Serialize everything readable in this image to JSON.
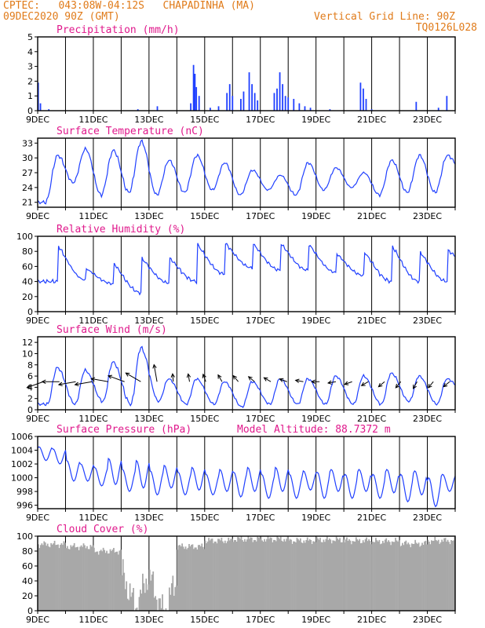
{
  "header": {
    "line1": "CPTEC:   043:08W-04:12S   CHAPADINHA (MA)",
    "line2": "09DEC2020 90Z (GMT)",
    "grid_note": "Vertical Grid Line: 90Z",
    "code": "TQ0126L028"
  },
  "colors": {
    "header": "#e07b1a",
    "title": "#e0198c",
    "line": "#2040ff",
    "cloud": "#a8a8a8",
    "axis": "#000000"
  },
  "x_ticks": [
    "9DEC",
    "11DEC",
    "13DEC",
    "15DEC",
    "17DEC",
    "19DEC",
    "21DEC",
    "23DEC"
  ],
  "chart_data": [
    {
      "type": "bar",
      "title": "Precipitation (mm/h)",
      "x_range_days": [
        9,
        24
      ],
      "ylim": [
        0,
        5
      ],
      "yticks": [
        "0",
        "1",
        "2",
        "3",
        "4",
        "5"
      ],
      "events": [
        {
          "day": 9.02,
          "value": 1.9
        },
        {
          "day": 9.1,
          "value": 0.5
        },
        {
          "day": 9.4,
          "value": 0.1
        },
        {
          "day": 12.6,
          "value": 0.1
        },
        {
          "day": 13.3,
          "value": 0.3
        },
        {
          "day": 14.5,
          "value": 0.5
        },
        {
          "day": 14.6,
          "value": 3.1
        },
        {
          "day": 14.65,
          "value": 2.5
        },
        {
          "day": 14.7,
          "value": 1.6
        },
        {
          "day": 14.8,
          "value": 1.0
        },
        {
          "day": 15.2,
          "value": 0.2
        },
        {
          "day": 15.5,
          "value": 0.3
        },
        {
          "day": 15.8,
          "value": 1.2
        },
        {
          "day": 15.9,
          "value": 1.8
        },
        {
          "day": 16.0,
          "value": 1.0
        },
        {
          "day": 16.3,
          "value": 0.8
        },
        {
          "day": 16.4,
          "value": 1.3
        },
        {
          "day": 16.6,
          "value": 2.6
        },
        {
          "day": 16.7,
          "value": 1.8
        },
        {
          "day": 16.8,
          "value": 1.2
        },
        {
          "day": 16.9,
          "value": 0.7
        },
        {
          "day": 17.5,
          "value": 1.2
        },
        {
          "day": 17.6,
          "value": 1.5
        },
        {
          "day": 17.7,
          "value": 2.6
        },
        {
          "day": 17.8,
          "value": 1.8
        },
        {
          "day": 17.9,
          "value": 1.0
        },
        {
          "day": 18.0,
          "value": 0.9
        },
        {
          "day": 18.2,
          "value": 0.8
        },
        {
          "day": 18.4,
          "value": 0.5
        },
        {
          "day": 18.6,
          "value": 0.3
        },
        {
          "day": 18.8,
          "value": 0.2
        },
        {
          "day": 19.5,
          "value": 0.1
        },
        {
          "day": 20.6,
          "value": 1.9
        },
        {
          "day": 20.7,
          "value": 1.5
        },
        {
          "day": 20.8,
          "value": 0.8
        },
        {
          "day": 21.0,
          "value": 0.1
        },
        {
          "day": 22.6,
          "value": 0.6
        },
        {
          "day": 23.4,
          "value": 0.2
        },
        {
          "day": 23.7,
          "value": 1.0
        }
      ]
    },
    {
      "type": "line",
      "title": "Surface Temperature (nC)",
      "x_range_days": [
        9,
        24
      ],
      "ylim": [
        20,
        34
      ],
      "yticks": [
        "21",
        "24",
        "27",
        "30",
        "33"
      ],
      "diurnal_max": [
        30.5,
        31.8,
        31.5,
        33.3,
        29.5,
        30.5,
        29.0,
        27.5,
        26.5,
        29.0,
        28.0,
        27.0,
        29.5,
        30.5,
        30.5
      ],
      "diurnal_min": [
        21.0,
        25.0,
        22.5,
        23.0,
        22.5,
        23.0,
        23.5,
        22.5,
        23.5,
        22.5,
        23.5,
        24.0,
        22.5,
        23.0,
        23.0,
        27.0
      ]
    },
    {
      "type": "line",
      "title": "Relative Humidity (%)",
      "x_range_days": [
        9,
        24
      ],
      "ylim": [
        0,
        100
      ],
      "yticks": [
        "0",
        "20",
        "40",
        "60",
        "80",
        "100"
      ],
      "diurnal_max": [
        100,
        63,
        75,
        80,
        80,
        100,
        100,
        100,
        100,
        100,
        85,
        90,
        100,
        90,
        88
      ],
      "diurnal_min": [
        40,
        42,
        37,
        25,
        38,
        40,
        50,
        58,
        55,
        55,
        52,
        48,
        40,
        40,
        40,
        58
      ]
    },
    {
      "type": "line",
      "title": "Surface Wind (m/s)",
      "x_range_days": [
        9,
        24
      ],
      "ylim": [
        0,
        13
      ],
      "yticks": [
        "0",
        "2",
        "4",
        "6",
        "8",
        "10",
        "12"
      ],
      "diurnal_max": [
        7.5,
        7.0,
        8.5,
        11.0,
        5.5,
        5.5,
        5.0,
        5.0,
        5.5,
        5.5,
        6.0,
        6.0,
        6.5,
        6.0,
        5.5
      ],
      "diurnal_min": [
        1.0,
        1.0,
        1.5,
        1.0,
        1.5,
        1.0,
        1.0,
        0.5,
        1.0,
        1.0,
        1.0,
        1.0,
        1.0,
        1.5,
        1.0,
        3.0
      ],
      "vector_angles_deg": [
        200,
        180,
        190,
        190,
        170,
        160,
        150,
        100,
        95,
        100,
        110,
        120,
        130,
        140,
        150,
        160,
        170,
        180,
        190,
        200,
        210,
        220,
        230,
        240,
        230,
        220
      ]
    },
    {
      "type": "line",
      "title": "Surface Pressure (hPa)",
      "annotation": "Model Altitude: 88.7372 m",
      "x_range_days": [
        9,
        24
      ],
      "ylim": [
        995.5,
        1006
      ],
      "yticks": [
        "996",
        "998",
        "1000",
        "1002",
        "1004",
        "1006"
      ],
      "semidiurnal_peaks": [
        1004.5,
        1004.2,
        1002.5,
        1002.0,
        1001.5,
        1002.8,
        1001.2,
        1002.5,
        1001.0,
        1001.8,
        1000.8,
        1001.5,
        1000.5,
        1001.2,
        1000.8,
        1001.5,
        1000.5,
        1001.5,
        1000.5,
        1001.0,
        1000.8,
        1001.2,
        1000.5,
        1001.2,
        1000.5,
        1001.2,
        1000.5,
        1001.0,
        1000.0,
        1000.5
      ],
      "semidiurnal_troughs": [
        1002.5,
        1002.0,
        999.5,
        999.5,
        998.8,
        999.0,
        998.0,
        998.5,
        997.5,
        998.5,
        997.5,
        998.2,
        997.5,
        998.0,
        997.2,
        998.0,
        997.0,
        998.0,
        997.0,
        998.2,
        997.0,
        998.0,
        997.0,
        998.0,
        997.0,
        997.8,
        996.5,
        997.5,
        995.8,
        998.0
      ]
    },
    {
      "type": "area",
      "title": "Cloud Cover (%)",
      "x_range_days": [
        9,
        24
      ],
      "ylim": [
        0,
        100
      ],
      "yticks": [
        "0",
        "20",
        "40",
        "60",
        "80",
        "100"
      ],
      "daily_mean": [
        89,
        86,
        80,
        28,
        20,
        86,
        94,
        96,
        96,
        94,
        95,
        94,
        93,
        90,
        94
      ]
    }
  ]
}
